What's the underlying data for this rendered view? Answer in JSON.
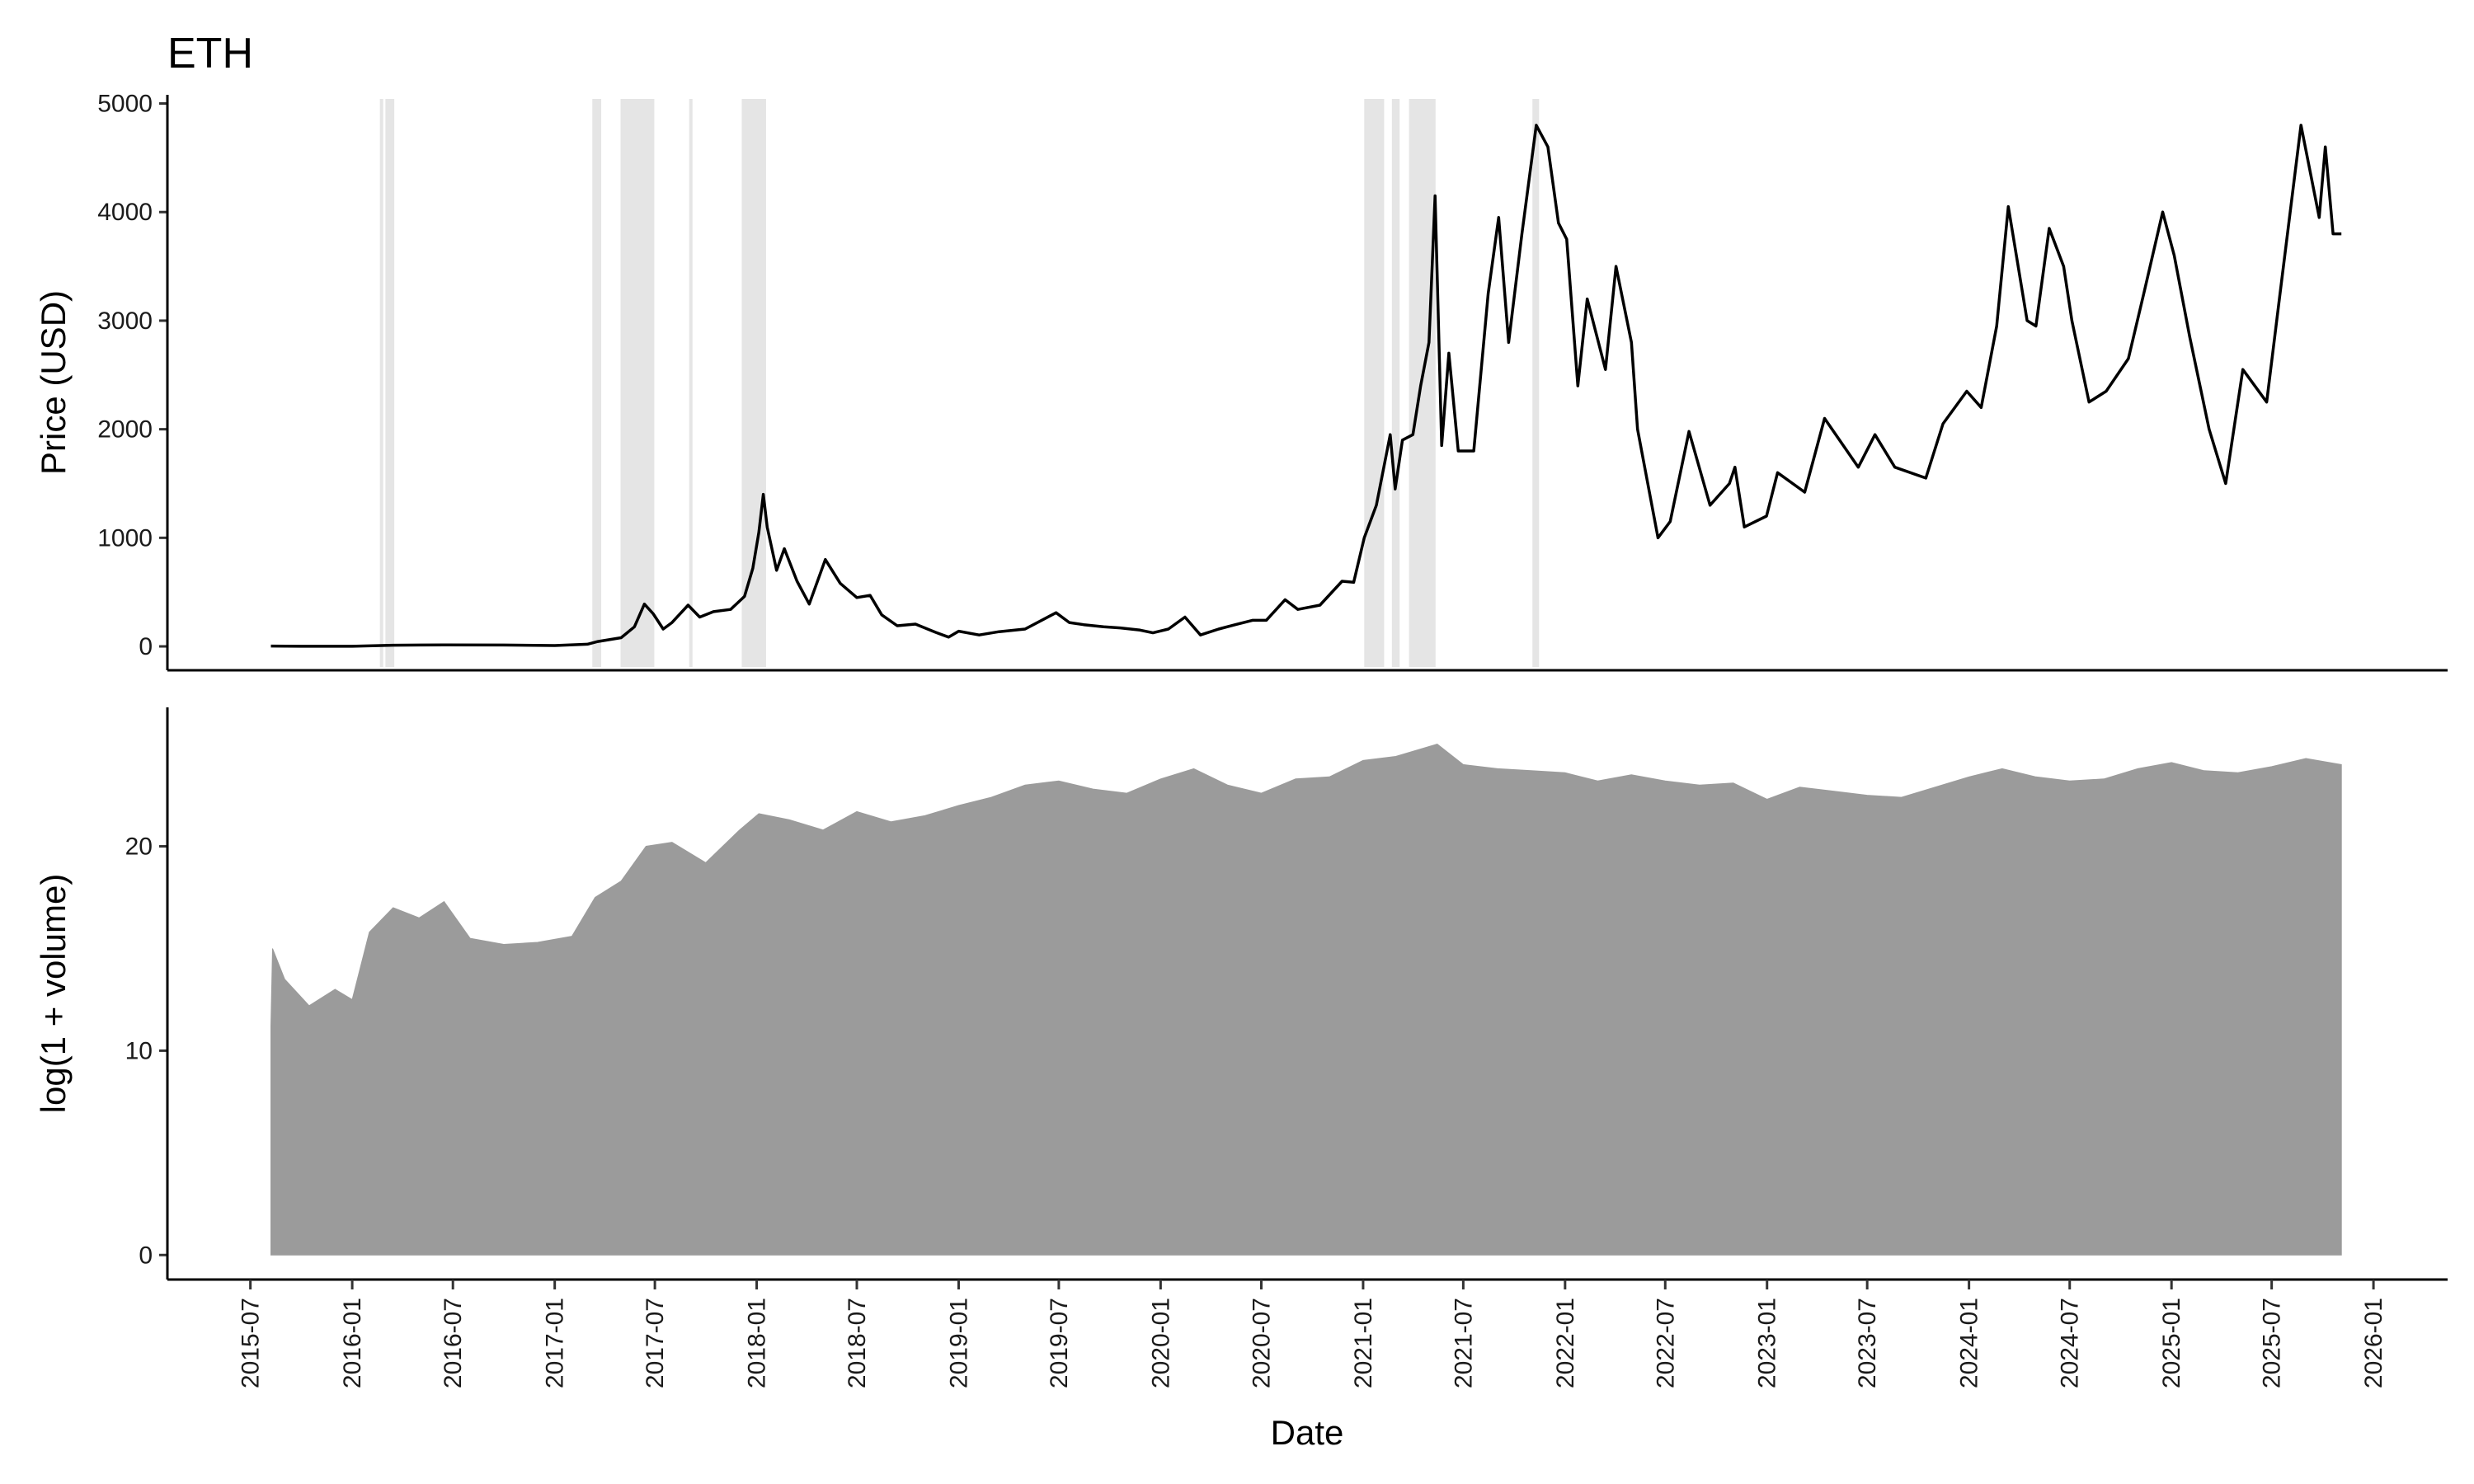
{
  "chart_data": [
    {
      "type": "line",
      "panel": "price",
      "title": "ETH",
      "xlabel": "",
      "ylabel": "Price (USD)",
      "ylim": [
        -220,
        5080
      ],
      "yticks": [
        0,
        1000,
        2000,
        3000,
        4000,
        5000
      ],
      "grid": false,
      "line_color": "#000000",
      "highlight_color": "#555555",
      "shade_color": "#e5e5e5",
      "shaded_periods": [
        [
          "2016-02-20",
          "2016-02-23"
        ],
        [
          "2016-03-01",
          "2016-03-17"
        ],
        [
          "2017-03-10",
          "2017-03-26"
        ],
        [
          "2017-04-30",
          "2017-06-30"
        ],
        [
          "2017-09-01",
          "2017-09-06"
        ],
        [
          "2017-12-05",
          "2018-01-18"
        ],
        [
          "2021-01-03",
          "2021-02-08"
        ],
        [
          "2021-02-22",
          "2021-03-08"
        ],
        [
          "2021-03-25",
          "2021-05-12"
        ],
        [
          "2021-11-03",
          "2021-11-15"
        ]
      ],
      "series": [
        {
          "points": [
            [
              "2015-08-07",
              3
            ],
            [
              "2015-10-01",
              1
            ],
            [
              "2016-01-01",
              1
            ],
            [
              "2016-03-15",
              11
            ],
            [
              "2016-06-15",
              14
            ],
            [
              "2016-10-01",
              12
            ],
            [
              "2017-01-01",
              8
            ],
            [
              "2017-03-01",
              20
            ],
            [
              "2017-03-20",
              45
            ],
            [
              "2017-05-01",
              80
            ],
            [
              "2017-05-25",
              180
            ],
            [
              "2017-06-12",
              390
            ],
            [
              "2017-06-28",
              300
            ],
            [
              "2017-07-16",
              160
            ],
            [
              "2017-08-01",
              220
            ],
            [
              "2017-08-30",
              380
            ],
            [
              "2017-09-20",
              270
            ],
            [
              "2017-10-15",
              320
            ],
            [
              "2017-11-15",
              340
            ],
            [
              "2017-12-10",
              460
            ],
            [
              "2017-12-25",
              720
            ],
            [
              "2018-01-05",
              1050
            ],
            [
              "2018-01-13",
              1400
            ],
            [
              "2018-01-20",
              1100
            ],
            [
              "2018-02-06",
              700
            ],
            [
              "2018-02-20",
              900
            ],
            [
              "2018-03-15",
              600
            ],
            [
              "2018-04-06",
              390
            ],
            [
              "2018-05-05",
              800
            ],
            [
              "2018-06-01",
              580
            ],
            [
              "2018-07-01",
              450
            ],
            [
              "2018-07-25",
              470
            ],
            [
              "2018-08-15",
              290
            ],
            [
              "2018-09-12",
              190
            ],
            [
              "2018-10-15",
              205
            ],
            [
              "2018-11-20",
              130
            ],
            [
              "2018-12-14",
              85
            ],
            [
              "2019-01-01",
              140
            ],
            [
              "2019-02-07",
              105
            ],
            [
              "2019-03-15",
              135
            ],
            [
              "2019-05-01",
              160
            ],
            [
              "2019-06-26",
              310
            ],
            [
              "2019-07-20",
              220
            ],
            [
              "2019-08-15",
              200
            ],
            [
              "2019-09-20",
              180
            ],
            [
              "2019-10-20",
              170
            ],
            [
              "2019-11-25",
              150
            ],
            [
              "2019-12-18",
              125
            ],
            [
              "2020-01-15",
              160
            ],
            [
              "2020-02-14",
              270
            ],
            [
              "2020-03-13",
              105
            ],
            [
              "2020-04-15",
              160
            ],
            [
              "2020-05-15",
              200
            ],
            [
              "2020-06-15",
              240
            ],
            [
              "2020-07-10",
              240
            ],
            [
              "2020-08-13",
              430
            ],
            [
              "2020-09-05",
              340
            ],
            [
              "2020-10-15",
              380
            ],
            [
              "2020-11-24",
              600
            ],
            [
              "2020-12-15",
              590
            ],
            [
              "2021-01-03",
              1000
            ],
            [
              "2021-01-25",
              1300
            ],
            [
              "2021-02-19",
              1950
            ],
            [
              "2021-02-28",
              1450
            ],
            [
              "2021-03-13",
              1900
            ],
            [
              "2021-04-01",
              1950
            ],
            [
              "2021-04-15",
              2400
            ],
            [
              "2021-04-30",
              2800
            ],
            [
              "2021-05-11",
              4150
            ],
            [
              "2021-05-23",
              1850
            ],
            [
              "2021-06-05",
              2700
            ],
            [
              "2021-06-22",
              1800
            ],
            [
              "2021-07-20",
              1800
            ],
            [
              "2021-08-15",
              3250
            ],
            [
              "2021-09-03",
              3950
            ],
            [
              "2021-09-21",
              2800
            ],
            [
              "2021-10-15",
              3800
            ],
            [
              "2021-11-10",
              4800
            ],
            [
              "2021-12-01",
              4600
            ],
            [
              "2021-12-20",
              3900
            ],
            [
              "2022-01-04",
              3750
            ],
            [
              "2022-01-24",
              2400
            ],
            [
              "2022-02-10",
              3200
            ],
            [
              "2022-03-15",
              2550
            ],
            [
              "2022-04-03",
              3500
            ],
            [
              "2022-05-01",
              2800
            ],
            [
              "2022-05-12",
              2000
            ],
            [
              "2022-06-18",
              1000
            ],
            [
              "2022-07-10",
              1150
            ],
            [
              "2022-08-13",
              1980
            ],
            [
              "2022-09-20",
              1300
            ],
            [
              "2022-10-25",
              1500
            ],
            [
              "2022-11-04",
              1650
            ],
            [
              "2022-11-21",
              1100
            ],
            [
              "2022-12-31",
              1200
            ],
            [
              "2023-01-20",
              1600
            ],
            [
              "2023-03-10",
              1420
            ],
            [
              "2023-04-15",
              2100
            ],
            [
              "2023-06-15",
              1650
            ],
            [
              "2023-07-15",
              1950
            ],
            [
              "2023-08-20",
              1650
            ],
            [
              "2023-10-15",
              1550
            ],
            [
              "2023-11-15",
              2050
            ],
            [
              "2023-12-28",
              2350
            ],
            [
              "2024-01-23",
              2200
            ],
            [
              "2024-02-20",
              2950
            ],
            [
              "2024-03-12",
              4050
            ],
            [
              "2024-04-15",
              3000
            ],
            [
              "2024-05-01",
              2950
            ],
            [
              "2024-05-25",
              3850
            ],
            [
              "2024-06-20",
              3500
            ],
            [
              "2024-07-05",
              3000
            ],
            [
              "2024-08-05",
              2250
            ],
            [
              "2024-09-05",
              2350
            ],
            [
              "2024-10-15",
              2650
            ],
            [
              "2024-11-12",
              3250
            ],
            [
              "2024-12-16",
              4000
            ],
            [
              "2025-01-06",
              3600
            ],
            [
              "2025-02-03",
              2850
            ],
            [
              "2025-03-10",
              2000
            ],
            [
              "2025-04-09",
              1500
            ],
            [
              "2025-05-10",
              2550
            ],
            [
              "2025-06-22",
              2250
            ],
            [
              "2025-07-15",
              3200
            ],
            [
              "2025-08-23",
              4800
            ],
            [
              "2025-09-25",
              3950
            ],
            [
              "2025-10-06",
              4600
            ],
            [
              "2025-10-20",
              3800
            ],
            [
              "2025-11-04",
              3800
            ]
          ]
        }
      ]
    },
    {
      "type": "area",
      "panel": "volume",
      "title": "",
      "xlabel": "Date",
      "ylabel": "log(1 + volume)",
      "ylim": [
        -1.2,
        26.8
      ],
      "yticks": [
        0,
        10,
        20
      ],
      "grid": false,
      "fill_color": "#9b9b9b",
      "series": [
        {
          "points": [
            [
              "2015-08-07",
              11.2
            ],
            [
              "2015-08-10",
              15.0
            ],
            [
              "2015-09-01",
              13.5
            ],
            [
              "2015-10-15",
              12.2
            ],
            [
              "2015-12-01",
              13.0
            ],
            [
              "2016-01-01",
              12.5
            ],
            [
              "2016-02-01",
              15.8
            ],
            [
              "2016-03-15",
              17.0
            ],
            [
              "2016-05-01",
              16.5
            ],
            [
              "2016-06-15",
              17.3
            ],
            [
              "2016-08-01",
              15.5
            ],
            [
              "2016-10-01",
              15.2
            ],
            [
              "2016-12-01",
              15.3
            ],
            [
              "2017-02-01",
              15.6
            ],
            [
              "2017-03-15",
              17.5
            ],
            [
              "2017-05-01",
              18.3
            ],
            [
              "2017-06-15",
              20.0
            ],
            [
              "2017-08-01",
              20.2
            ],
            [
              "2017-10-01",
              19.2
            ],
            [
              "2017-12-01",
              20.8
            ],
            [
              "2018-01-05",
              21.6
            ],
            [
              "2018-03-01",
              21.3
            ],
            [
              "2018-05-01",
              20.8
            ],
            [
              "2018-07-01",
              21.7
            ],
            [
              "2018-09-01",
              21.2
            ],
            [
              "2018-11-01",
              21.5
            ],
            [
              "2019-01-01",
              22.0
            ],
            [
              "2019-03-01",
              22.4
            ],
            [
              "2019-05-01",
              23.0
            ],
            [
              "2019-07-01",
              23.2
            ],
            [
              "2019-09-01",
              22.8
            ],
            [
              "2019-11-01",
              22.6
            ],
            [
              "2020-01-01",
              23.3
            ],
            [
              "2020-03-01",
              23.8
            ],
            [
              "2020-05-01",
              23.0
            ],
            [
              "2020-07-01",
              22.6
            ],
            [
              "2020-09-01",
              23.3
            ],
            [
              "2020-11-01",
              23.4
            ],
            [
              "2021-01-01",
              24.2
            ],
            [
              "2021-03-01",
              24.4
            ],
            [
              "2021-05-15",
              25.0
            ],
            [
              "2021-07-01",
              24.0
            ],
            [
              "2021-09-01",
              23.8
            ],
            [
              "2021-11-01",
              23.7
            ],
            [
              "2022-01-01",
              23.6
            ],
            [
              "2022-03-01",
              23.2
            ],
            [
              "2022-05-01",
              23.5
            ],
            [
              "2022-07-01",
              23.2
            ],
            [
              "2022-09-01",
              23.0
            ],
            [
              "2022-11-01",
              23.1
            ],
            [
              "2023-01-01",
              22.3
            ],
            [
              "2023-03-01",
              22.9
            ],
            [
              "2023-05-01",
              22.7
            ],
            [
              "2023-07-01",
              22.5
            ],
            [
              "2023-09-01",
              22.4
            ],
            [
              "2023-11-01",
              22.9
            ],
            [
              "2024-01-01",
              23.4
            ],
            [
              "2024-03-01",
              23.8
            ],
            [
              "2024-05-01",
              23.4
            ],
            [
              "2024-07-01",
              23.2
            ],
            [
              "2024-09-01",
              23.3
            ],
            [
              "2024-11-01",
              23.8
            ],
            [
              "2025-01-01",
              24.1
            ],
            [
              "2025-03-01",
              23.7
            ],
            [
              "2025-05-01",
              23.6
            ],
            [
              "2025-07-01",
              23.9
            ],
            [
              "2025-09-01",
              24.3
            ],
            [
              "2025-11-04",
              24.0
            ]
          ]
        }
      ]
    }
  ],
  "x_axis": {
    "label": "Date",
    "range": [
      "2015-02-01",
      "2026-05-15"
    ],
    "ticks": [
      "2015-07",
      "2016-01",
      "2016-07",
      "2017-01",
      "2017-07",
      "2018-01",
      "2018-07",
      "2019-01",
      "2019-07",
      "2020-01",
      "2020-07",
      "2021-01",
      "2021-07",
      "2022-01",
      "2022-07",
      "2023-01",
      "2023-07",
      "2024-01",
      "2024-07",
      "2025-01",
      "2025-07",
      "2026-01"
    ]
  }
}
